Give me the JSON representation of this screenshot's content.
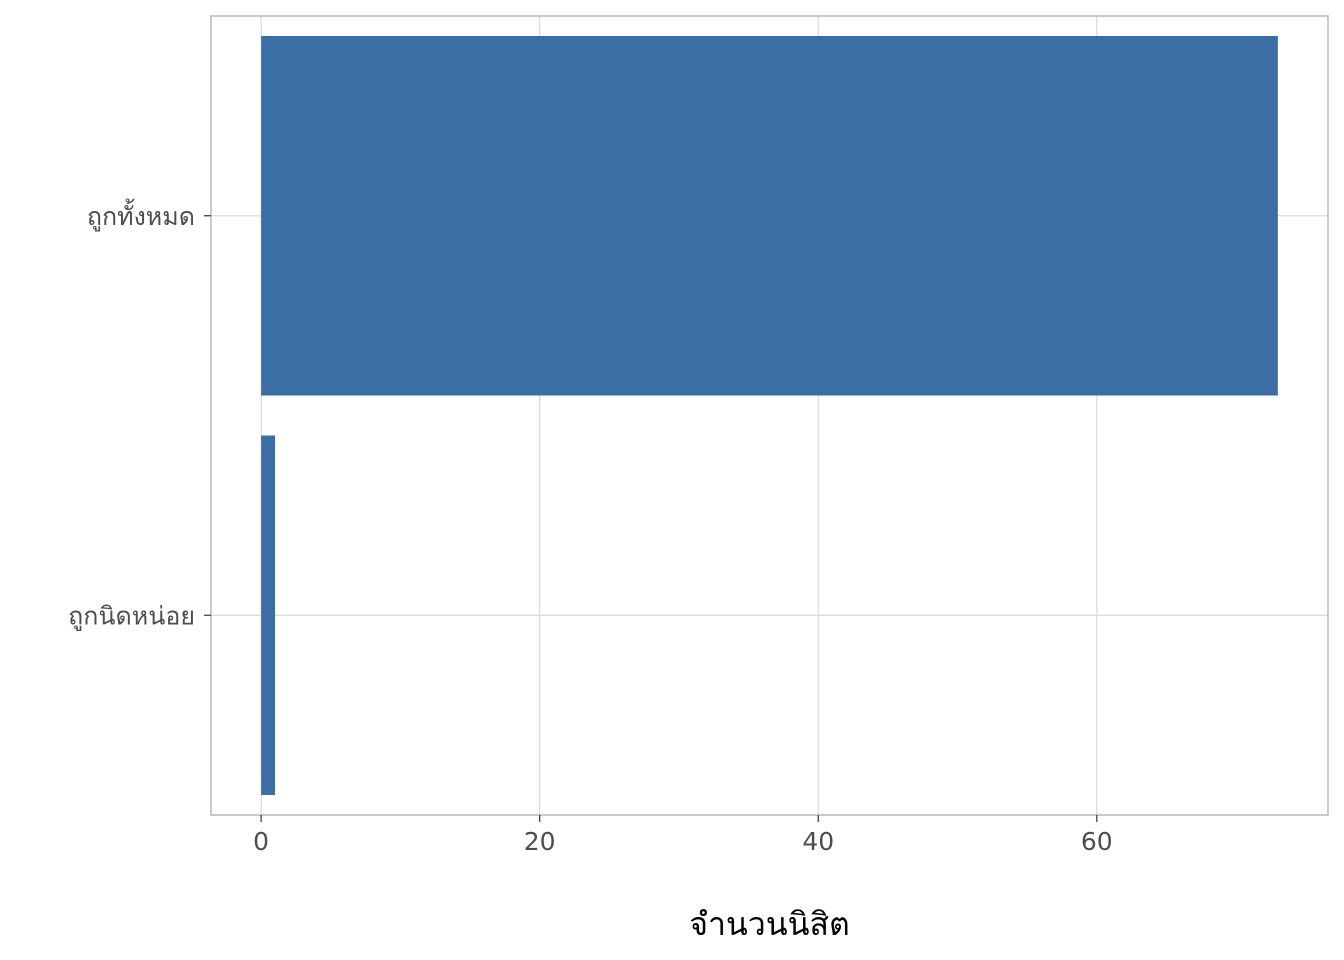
{
  "chart_data": {
    "type": "bar",
    "orientation": "horizontal",
    "categories": [
      "ถูกทั้งหมด",
      "ถูกนิดหน่อย"
    ],
    "values": [
      73,
      1
    ],
    "title": "",
    "xlabel": "จำนวนนิสิต",
    "ylabel": "",
    "xlim": [
      -3.6,
      76.6
    ],
    "xticks": [
      0,
      20,
      40,
      60
    ],
    "grid": true,
    "legend": "none",
    "bar_color": "#3a6ea5",
    "grid_color": "#d9d9d9",
    "panel_border_color": "#b3b3b3"
  }
}
